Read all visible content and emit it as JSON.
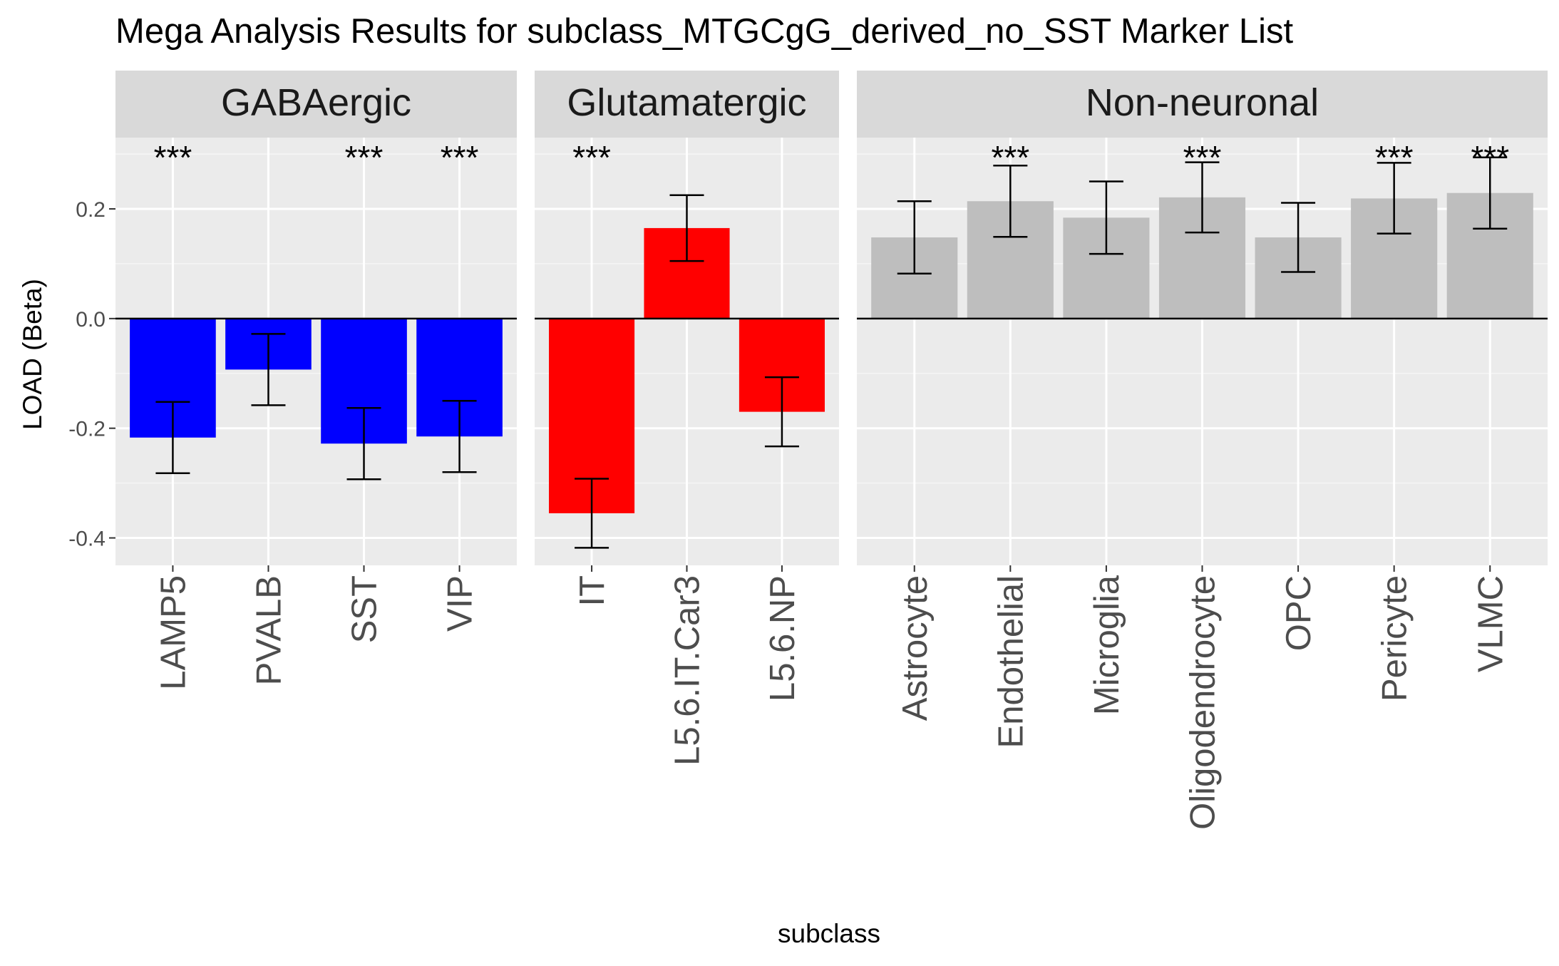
{
  "chart_data": {
    "type": "bar",
    "title": "Mega Analysis Results for subclass_MTGCgG_derived_no_SST Marker List",
    "xlabel": "subclass",
    "ylabel": "LOAD (Beta)",
    "ylim": [
      -0.45,
      0.33
    ],
    "yticks": [
      -0.4,
      -0.2,
      0.0,
      0.2
    ],
    "ytick_labels": [
      "-0.4",
      "-0.2",
      "0.0",
      "0.2"
    ],
    "grid": true,
    "significance_marker": "***",
    "facets": [
      {
        "name": "GABAergic",
        "color": "#0000ff",
        "categories": [
          "LAMP5",
          "PVALB",
          "SST",
          "VIP"
        ],
        "values": [
          -0.217,
          -0.093,
          -0.228,
          -0.215
        ],
        "err_low": [
          -0.282,
          -0.158,
          -0.293,
          -0.28
        ],
        "err_high": [
          -0.152,
          -0.028,
          -0.163,
          -0.15
        ],
        "significant": [
          true,
          false,
          true,
          true
        ]
      },
      {
        "name": "Glutamatergic",
        "color": "#ff0000",
        "categories": [
          "IT",
          "L5.6.IT.Car3",
          "L5.6.NP"
        ],
        "values": [
          -0.355,
          0.165,
          -0.17
        ],
        "err_low": [
          -0.418,
          0.105,
          -0.233
        ],
        "err_high": [
          -0.292,
          0.225,
          -0.107
        ],
        "significant": [
          true,
          false,
          false
        ]
      },
      {
        "name": "Non-neuronal",
        "color": "#bebebe",
        "categories": [
          "Astrocyte",
          "Endothelial",
          "Microglia",
          "Oligodendrocyte",
          "OPC",
          "Pericyte",
          "VLMC"
        ],
        "values": [
          0.148,
          0.214,
          0.184,
          0.221,
          0.148,
          0.219,
          0.229
        ],
        "err_low": [
          0.082,
          0.149,
          0.118,
          0.157,
          0.085,
          0.155,
          0.164
        ],
        "err_high": [
          0.214,
          0.279,
          0.25,
          0.285,
          0.211,
          0.284,
          0.294
        ],
        "significant": [
          false,
          true,
          false,
          true,
          false,
          true,
          true
        ]
      }
    ]
  }
}
